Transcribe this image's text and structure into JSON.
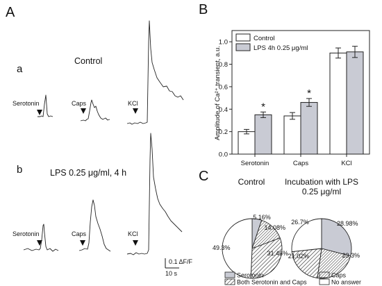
{
  "panels": {
    "A": "A",
    "B": "B",
    "C": "C"
  },
  "panel_a": {
    "rows": [
      {
        "letter": "a",
        "condition": "Control"
      },
      {
        "letter": "b",
        "condition": "LPS 0.25 μg/ml, 4 h"
      }
    ],
    "stimuli": [
      "Serotonin",
      "Caps",
      "KCl"
    ],
    "scale_bar": {
      "amplitude_label": "0.1 ΔF/F",
      "time_label": "10 s"
    }
  },
  "colors": {
    "control": "#ffffff",
    "lps": "#c9cbd4",
    "stroke": "#222222"
  },
  "chart_data": [
    {
      "type": "bar",
      "panel": "B",
      "categories": [
        "Serotonin",
        "Caps",
        "KCl"
      ],
      "ylabel": "Amplitude of Ca²⁺ transient, a.u.",
      "ylim": [
        0,
        1.1
      ],
      "yticks": [
        "0.0",
        "0.2",
        "0.4",
        "0.6",
        "0.8",
        "1.0"
      ],
      "legend_placement": "top-left",
      "series": [
        {
          "name": "Control",
          "values": [
            0.2,
            0.34,
            0.9
          ],
          "errors": [
            0.02,
            0.03,
            0.045
          ]
        },
        {
          "name": "LPS 4h 0.25 μg/ml",
          "values": [
            0.35,
            0.46,
            0.91
          ],
          "errors": [
            0.025,
            0.035,
            0.05
          ]
        }
      ],
      "significance": [
        "*",
        "*",
        ""
      ]
    },
    {
      "type": "pie",
      "panel": "C",
      "charts": [
        {
          "title": "Control",
          "slices": [
            {
              "category": "Serotonin",
              "value": 5.16,
              "label": "5.16%"
            },
            {
              "category": "Caps",
              "value": 14.08,
              "label": "14.08%"
            },
            {
              "category": "Both Serotonin and Caps",
              "value": 31.46,
              "label": "31.46%"
            },
            {
              "category": "No answer",
              "value": 49.3,
              "label": "49.3%"
            }
          ]
        },
        {
          "title": "Incubation with LPS 0.25 μg/ml",
          "title_lines": [
            "Incubation with LPS",
            "0.25 μg/ml"
          ],
          "slices": [
            {
              "category": "Serotonin",
              "value": 28.98,
              "label": "28.98%"
            },
            {
              "category": "Caps",
              "value": 23.3,
              "label": "23.3%"
            },
            {
              "category": "Both Serotonin and Caps",
              "value": 21.02,
              "label": "21.02%"
            },
            {
              "category": "No answer",
              "value": 26.7,
              "label": "26.7%"
            }
          ]
        }
      ],
      "legend": [
        "Serotonin",
        "Caps",
        "Both Serotonin and Caps",
        "No answer"
      ]
    }
  ]
}
